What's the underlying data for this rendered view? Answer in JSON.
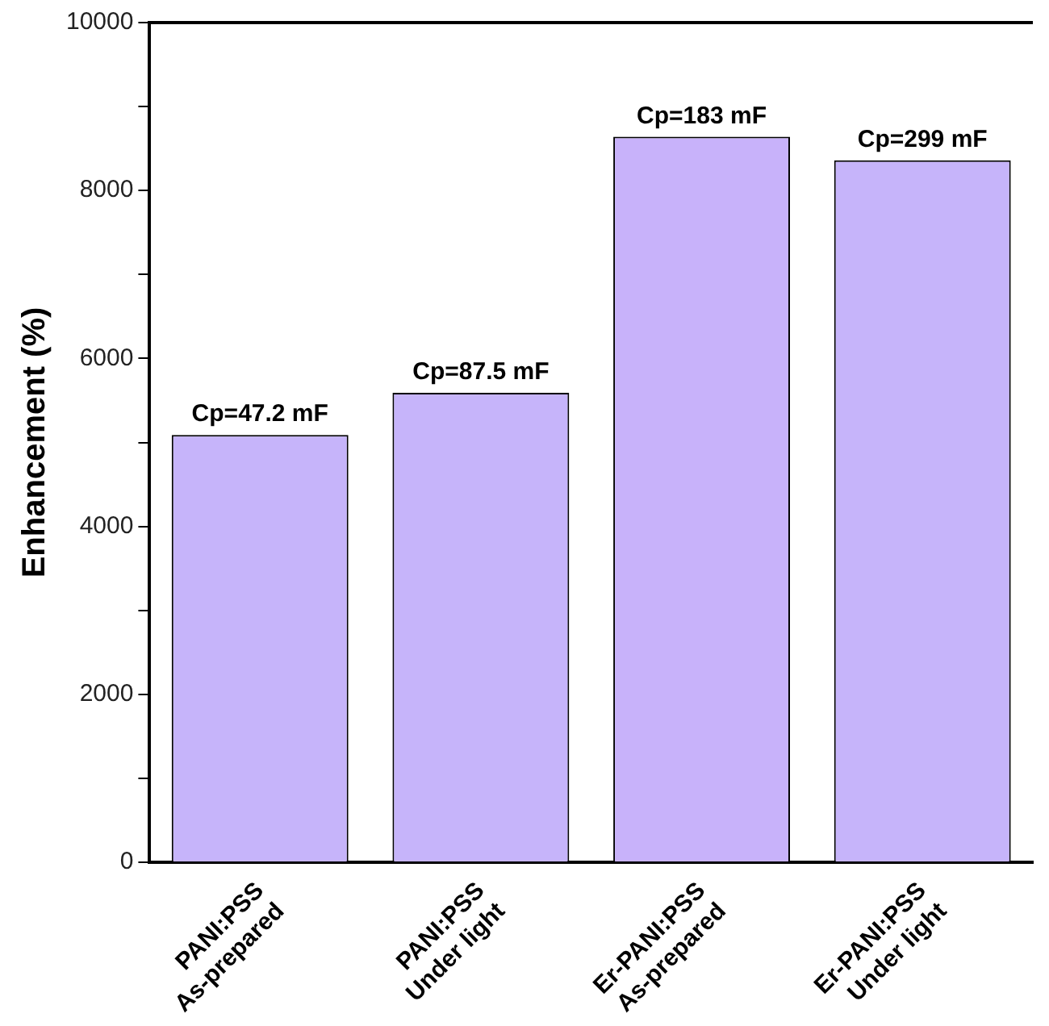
{
  "chart_data": {
    "type": "bar",
    "ylabel": "Enhancement (%)",
    "categories": [
      "PANI:PSS\nAs-prepared",
      "PANI:PSS\nUnder light",
      "Er-PANI:PSS\nAs-prepared",
      "Er-PANI:PSS\nUnder light"
    ],
    "values": [
      5090,
      5590,
      8640,
      8360
    ],
    "colors": [
      "#c6b4fa",
      "#c6b4fa",
      "#c8b2fa",
      "#c6b4fa"
    ],
    "ylim": [
      0,
      10000
    ],
    "yticks": [
      0,
      {
        "value": 1000,
        "label": null
      },
      2000,
      {
        "value": 3000,
        "label": null
      },
      4000,
      {
        "value": 5000,
        "label": null
      },
      6000,
      {
        "value": 7000,
        "label": null
      },
      8000,
      {
        "value": 9000,
        "label": null
      },
      10000
    ],
    "annotations": [
      {
        "text": "Cp=47.2 mF",
        "x": "PANI:PSS\nAs-prepared",
        "y": 5090
      },
      {
        "text": "Cp=87.5 mF",
        "x": "PANI:PSS\nUnder light",
        "y": 5590
      },
      {
        "text": "Cp=183 mF",
        "x": "Er-PANI:PSS\nAs-prepared",
        "y": 8640
      },
      {
        "text": "Cp=299 mF",
        "x": "Er-PANI:PSS\nUnder light",
        "y": 8360
      }
    ],
    "grid": false,
    "legend": false
  }
}
